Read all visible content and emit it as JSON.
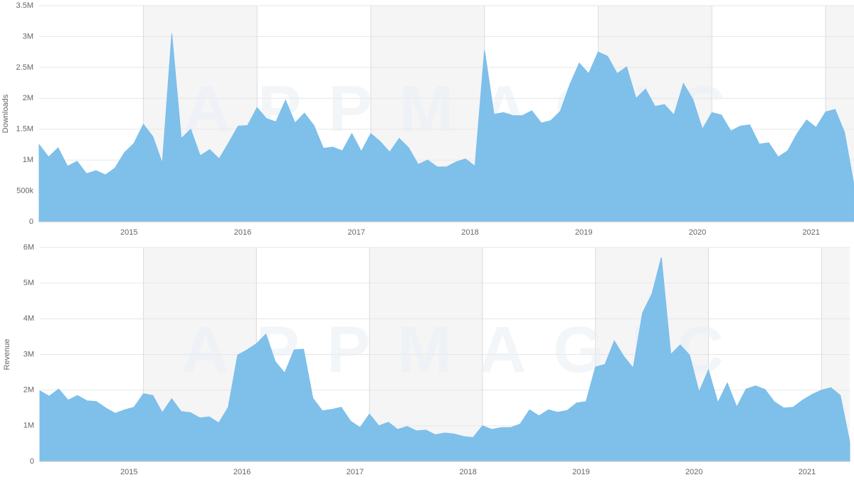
{
  "chart_data": [
    {
      "type": "area",
      "y_label": "Downloads",
      "watermark": "APPMAGIC",
      "color": "#78bdea",
      "grid": true,
      "categories": [
        null,
        null,
        null,
        null,
        null,
        null,
        null,
        null,
        null,
        null,
        null,
        "2015",
        null,
        null,
        null,
        null,
        null,
        null,
        null,
        null,
        null,
        null,
        null,
        "2016",
        null,
        null,
        null,
        null,
        null,
        null,
        null,
        null,
        null,
        null,
        null,
        "2017",
        null,
        null,
        null,
        null,
        null,
        null,
        null,
        null,
        null,
        null,
        null,
        "2018",
        null,
        null,
        null,
        null,
        null,
        null,
        null,
        null,
        null,
        null,
        null,
        "2019",
        null,
        null,
        null,
        null,
        null,
        null,
        null,
        null,
        null,
        null,
        null,
        "2020",
        null,
        null,
        null,
        null,
        null,
        null,
        null,
        null,
        null,
        null,
        null,
        "2021",
        null,
        null,
        null
      ],
      "values": [
        1250000,
        1050000,
        1200000,
        900000,
        980000,
        780000,
        830000,
        760000,
        870000,
        1120000,
        1270000,
        1580000,
        1380000,
        950000,
        3050000,
        1350000,
        1500000,
        1070000,
        1170000,
        1020000,
        1280000,
        1550000,
        1560000,
        1850000,
        1670000,
        1620000,
        1970000,
        1600000,
        1760000,
        1560000,
        1190000,
        1210000,
        1150000,
        1430000,
        1140000,
        1430000,
        1300000,
        1130000,
        1350000,
        1200000,
        930000,
        1000000,
        890000,
        890000,
        970000,
        1020000,
        900000,
        2780000,
        1740000,
        1770000,
        1720000,
        1720000,
        1800000,
        1600000,
        1640000,
        1790000,
        2220000,
        2570000,
        2400000,
        2750000,
        2680000,
        2400000,
        2510000,
        2000000,
        2150000,
        1870000,
        1900000,
        1730000,
        2240000,
        1980000,
        1500000,
        1770000,
        1730000,
        1470000,
        1550000,
        1570000,
        1260000,
        1280000,
        1050000,
        1150000,
        1430000,
        1650000,
        1530000,
        1780000,
        1820000,
        1450000,
        600000
      ],
      "ylim": [
        0,
        3500000
      ],
      "yticks": [
        0,
        {
          "value": 500000,
          "label": "500k"
        },
        {
          "value": 1000000,
          "label": "1M"
        },
        {
          "value": 1500000,
          "label": "1.5M"
        },
        {
          "value": 2000000,
          "label": "2M"
        },
        {
          "value": 2500000,
          "label": "2.5M"
        },
        {
          "value": 3000000,
          "label": "3M"
        },
        {
          "value": 3500000,
          "label": "3.5M"
        }
      ]
    },
    {
      "type": "area",
      "y_label": "Revenue",
      "watermark": "APPMAGIC",
      "color": "#78bdea",
      "grid": true,
      "categories": [
        null,
        null,
        null,
        null,
        null,
        null,
        null,
        null,
        null,
        null,
        null,
        "2015",
        null,
        null,
        null,
        null,
        null,
        null,
        null,
        null,
        null,
        null,
        null,
        "2016",
        null,
        null,
        null,
        null,
        null,
        null,
        null,
        null,
        null,
        null,
        null,
        "2017",
        null,
        null,
        null,
        null,
        null,
        null,
        null,
        null,
        null,
        null,
        null,
        "2018",
        null,
        null,
        null,
        null,
        null,
        null,
        null,
        null,
        null,
        null,
        null,
        "2019",
        null,
        null,
        null,
        null,
        null,
        null,
        null,
        null,
        null,
        null,
        null,
        "2020",
        null,
        null,
        null,
        null,
        null,
        null,
        null,
        null,
        null,
        null,
        null,
        "2021",
        null,
        null,
        null
      ],
      "values": [
        1980000,
        1830000,
        2030000,
        1720000,
        1850000,
        1700000,
        1680000,
        1500000,
        1350000,
        1450000,
        1520000,
        1900000,
        1850000,
        1370000,
        1760000,
        1400000,
        1370000,
        1220000,
        1250000,
        1080000,
        1520000,
        2980000,
        3130000,
        3300000,
        3570000,
        2800000,
        2480000,
        3130000,
        3150000,
        1770000,
        1420000,
        1460000,
        1520000,
        1130000,
        950000,
        1330000,
        1000000,
        1100000,
        900000,
        980000,
        860000,
        880000,
        750000,
        800000,
        770000,
        700000,
        670000,
        1000000,
        900000,
        950000,
        950000,
        1050000,
        1450000,
        1280000,
        1450000,
        1380000,
        1430000,
        1640000,
        1680000,
        2650000,
        2720000,
        3380000,
        2950000,
        2620000,
        4170000,
        4700000,
        5720000,
        3000000,
        3270000,
        2980000,
        1950000,
        2570000,
        1650000,
        2200000,
        1530000,
        2030000,
        2120000,
        2020000,
        1670000,
        1500000,
        1520000,
        1720000,
        1880000,
        2000000,
        2070000,
        1850000,
        550000
      ],
      "ylim": [
        0,
        6000000
      ],
      "yticks": [
        0,
        {
          "value": 1000000,
          "label": "1M"
        },
        {
          "value": 2000000,
          "label": "2M"
        },
        {
          "value": 3000000,
          "label": "3M"
        },
        {
          "value": 4000000,
          "label": "4M"
        },
        {
          "value": 5000000,
          "label": "5M"
        },
        {
          "value": 6000000,
          "label": "6M"
        }
      ]
    }
  ]
}
